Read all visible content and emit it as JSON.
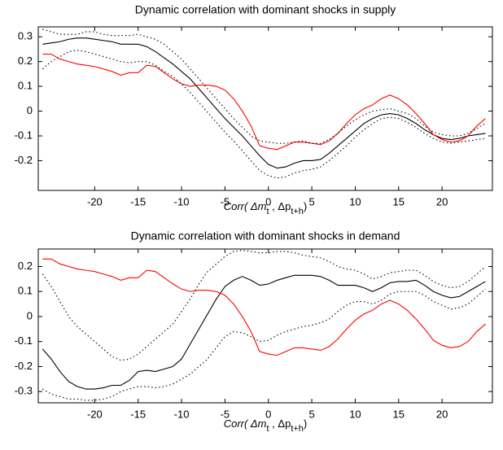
{
  "chart_data": [
    {
      "type": "line",
      "title": "Dynamic correlation with dominant shocks in supply",
      "xlabel": [
        {
          "text": "Corr( Δm"
        },
        {
          "text": "t",
          "sub": true
        },
        {
          "text": " , Δp"
        },
        {
          "text": "t+h",
          "sub": true
        },
        {
          "text": ")"
        }
      ],
      "xlim": [
        -26.5,
        25.8
      ],
      "xticks": [
        -20,
        -15,
        -10,
        -5,
        0,
        5,
        10,
        15,
        20
      ],
      "ylim": [
        -0.32,
        0.34
      ],
      "yticks": [
        -0.2,
        -0.1,
        0,
        0.1,
        0.2,
        0.3
      ],
      "grid": false,
      "x": [
        -26,
        -25,
        -24,
        -23,
        -22,
        -21,
        -20,
        -19,
        -18,
        -17,
        -16,
        -15,
        -14,
        -13,
        -12,
        -11,
        -10,
        -9,
        -8,
        -7,
        -6,
        -5,
        -4,
        -3,
        -2,
        -1,
        0,
        1,
        2,
        3,
        4,
        5,
        6,
        7,
        8,
        9,
        10,
        11,
        12,
        13,
        14,
        15,
        16,
        17,
        18,
        19,
        20,
        21,
        22,
        23,
        24,
        25
      ],
      "series": [
        {
          "color": "#000000",
          "style": "solid",
          "values": [
            0.27,
            0.275,
            0.28,
            0.29,
            0.295,
            0.295,
            0.29,
            0.285,
            0.28,
            0.27,
            0.27,
            0.27,
            0.26,
            0.24,
            0.215,
            0.19,
            0.16,
            0.13,
            0.09,
            0.05,
            0.01,
            -0.03,
            -0.065,
            -0.1,
            -0.14,
            -0.18,
            -0.215,
            -0.23,
            -0.225,
            -0.21,
            -0.2,
            -0.2,
            -0.195,
            -0.17,
            -0.14,
            -0.11,
            -0.08,
            -0.05,
            -0.03,
            -0.015,
            -0.01,
            -0.015,
            -0.03,
            -0.05,
            -0.075,
            -0.095,
            -0.11,
            -0.115,
            -0.11,
            -0.1,
            -0.095,
            -0.09
          ]
        },
        {
          "color": "#ff0000",
          "style": "solid",
          "values": [
            0.23,
            0.23,
            0.21,
            0.2,
            0.19,
            0.185,
            0.18,
            0.17,
            0.16,
            0.145,
            0.155,
            0.155,
            0.185,
            0.18,
            0.155,
            0.13,
            0.11,
            0.1,
            0.105,
            0.105,
            0.1,
            0.085,
            0.05,
            0.0,
            -0.06,
            -0.14,
            -0.15,
            -0.155,
            -0.14,
            -0.125,
            -0.125,
            -0.13,
            -0.135,
            -0.12,
            -0.09,
            -0.05,
            -0.015,
            0.01,
            0.025,
            0.05,
            0.065,
            0.05,
            0.025,
            -0.01,
            -0.05,
            -0.095,
            -0.115,
            -0.125,
            -0.12,
            -0.1,
            -0.06,
            -0.03
          ]
        },
        {
          "color": "#000000",
          "style": "dotted",
          "values": [
            0.33,
            0.32,
            0.31,
            0.31,
            0.31,
            0.32,
            0.32,
            0.31,
            0.305,
            0.305,
            0.305,
            0.31,
            0.3,
            0.29,
            0.27,
            0.24,
            0.21,
            0.17,
            0.13,
            0.09,
            0.05,
            0.01,
            -0.03,
            -0.065,
            -0.1,
            -0.12,
            -0.125,
            -0.13,
            -0.13,
            -0.125,
            -0.12,
            -0.13,
            -0.13,
            -0.115,
            -0.09,
            -0.06,
            -0.035,
            -0.015,
            0.0,
            0.005,
            0.01,
            0.0,
            -0.01,
            -0.03,
            -0.06,
            -0.085,
            -0.095,
            -0.1,
            -0.1,
            -0.09,
            -0.07,
            -0.05
          ]
        },
        {
          "color": "#000000",
          "style": "dotted",
          "values": [
            0.17,
            0.2,
            0.22,
            0.24,
            0.245,
            0.24,
            0.23,
            0.22,
            0.21,
            0.2,
            0.195,
            0.2,
            0.2,
            0.185,
            0.16,
            0.14,
            0.11,
            0.075,
            0.035,
            -0.005,
            -0.045,
            -0.085,
            -0.12,
            -0.16,
            -0.2,
            -0.24,
            -0.26,
            -0.27,
            -0.265,
            -0.25,
            -0.24,
            -0.235,
            -0.225,
            -0.2,
            -0.17,
            -0.14,
            -0.105,
            -0.075,
            -0.05,
            -0.03,
            -0.025,
            -0.03,
            -0.045,
            -0.065,
            -0.09,
            -0.11,
            -0.125,
            -0.13,
            -0.125,
            -0.12,
            -0.115,
            -0.11
          ]
        }
      ]
    },
    {
      "type": "line",
      "title": "Dynamic correlation with dominant shocks in demand",
      "xlabel": [
        {
          "text": "Corr( Δm"
        },
        {
          "text": "t",
          "sub": true
        },
        {
          "text": " , Δp"
        },
        {
          "text": "t+h",
          "sub": true
        },
        {
          "text": ")"
        }
      ],
      "xlim": [
        -26.5,
        25.8
      ],
      "xticks": [
        -20,
        -15,
        -10,
        -5,
        0,
        5,
        10,
        15,
        20
      ],
      "ylim": [
        -0.345,
        0.27
      ],
      "yticks": [
        -0.3,
        -0.2,
        -0.1,
        0,
        0.1,
        0.2
      ],
      "grid": false,
      "x": [
        -26,
        -25,
        -24,
        -23,
        -22,
        -21,
        -20,
        -19,
        -18,
        -17,
        -16,
        -15,
        -14,
        -13,
        -12,
        -11,
        -10,
        -9,
        -8,
        -7,
        -6,
        -5,
        -4,
        -3,
        -2,
        -1,
        0,
        1,
        2,
        3,
        4,
        5,
        6,
        7,
        8,
        9,
        10,
        11,
        12,
        13,
        14,
        15,
        16,
        17,
        18,
        19,
        20,
        21,
        22,
        23,
        24,
        25
      ],
      "series": [
        {
          "color": "#000000",
          "style": "solid",
          "values": [
            -0.13,
            -0.17,
            -0.22,
            -0.26,
            -0.28,
            -0.29,
            -0.29,
            -0.285,
            -0.275,
            -0.275,
            -0.255,
            -0.22,
            -0.215,
            -0.22,
            -0.21,
            -0.2,
            -0.17,
            -0.11,
            -0.05,
            0.01,
            0.07,
            0.12,
            0.145,
            0.16,
            0.145,
            0.125,
            0.13,
            0.145,
            0.155,
            0.165,
            0.165,
            0.165,
            0.16,
            0.145,
            0.125,
            0.125,
            0.125,
            0.115,
            0.1,
            0.115,
            0.135,
            0.14,
            0.14,
            0.145,
            0.125,
            0.1,
            0.085,
            0.075,
            0.08,
            0.1,
            0.12,
            0.14
          ]
        },
        {
          "color": "#ff0000",
          "style": "solid",
          "values": [
            0.23,
            0.23,
            0.21,
            0.2,
            0.19,
            0.185,
            0.18,
            0.17,
            0.16,
            0.145,
            0.155,
            0.155,
            0.185,
            0.18,
            0.155,
            0.13,
            0.11,
            0.1,
            0.105,
            0.105,
            0.1,
            0.085,
            0.05,
            0.0,
            -0.06,
            -0.14,
            -0.15,
            -0.155,
            -0.14,
            -0.125,
            -0.125,
            -0.13,
            -0.135,
            -0.12,
            -0.09,
            -0.05,
            -0.015,
            0.01,
            0.025,
            0.05,
            0.065,
            0.05,
            0.025,
            -0.01,
            -0.05,
            -0.095,
            -0.115,
            -0.125,
            -0.12,
            -0.1,
            -0.06,
            -0.03
          ]
        },
        {
          "color": "#000000",
          "style": "dotted",
          "values": [
            0.17,
            0.12,
            0.06,
            0.0,
            -0.04,
            -0.07,
            -0.1,
            -0.13,
            -0.16,
            -0.175,
            -0.17,
            -0.15,
            -0.12,
            -0.09,
            -0.06,
            -0.03,
            0.02,
            0.07,
            0.13,
            0.18,
            0.21,
            0.24,
            0.26,
            0.265,
            0.26,
            0.255,
            0.255,
            0.26,
            0.26,
            0.255,
            0.245,
            0.24,
            0.235,
            0.22,
            0.2,
            0.19,
            0.185,
            0.17,
            0.15,
            0.16,
            0.175,
            0.18,
            0.185,
            0.185,
            0.165,
            0.14,
            0.125,
            0.115,
            0.12,
            0.14,
            0.17,
            0.2
          ]
        },
        {
          "color": "#000000",
          "style": "dotted",
          "values": [
            -0.29,
            -0.31,
            -0.32,
            -0.33,
            -0.33,
            -0.335,
            -0.335,
            -0.33,
            -0.32,
            -0.3,
            -0.29,
            -0.28,
            -0.28,
            -0.285,
            -0.28,
            -0.27,
            -0.25,
            -0.23,
            -0.2,
            -0.17,
            -0.125,
            -0.08,
            -0.06,
            -0.065,
            -0.08,
            -0.1,
            -0.095,
            -0.075,
            -0.06,
            -0.05,
            -0.04,
            -0.035,
            -0.025,
            -0.01,
            0.02,
            0.045,
            0.06,
            0.06,
            0.05,
            0.065,
            0.09,
            0.1,
            0.1,
            0.1,
            0.085,
            0.06,
            0.045,
            0.03,
            0.035,
            0.05,
            0.08,
            0.11
          ]
        }
      ]
    }
  ]
}
